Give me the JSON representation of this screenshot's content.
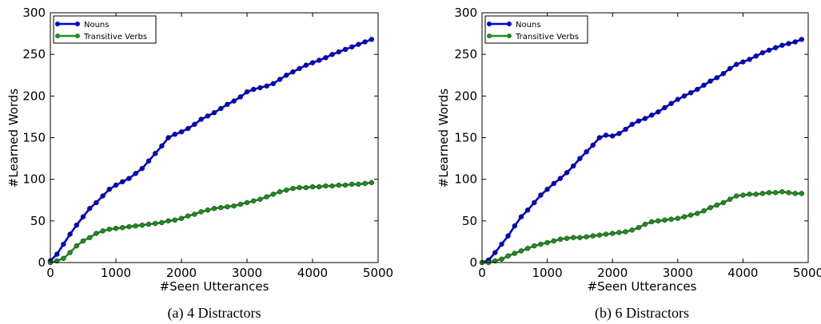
{
  "chart_data": [
    {
      "type": "line",
      "caption": "(a)  4 Distractors",
      "xlabel": "#Seen Utterances",
      "ylabel": "#Learned Words",
      "xlim": [
        0,
        5000
      ],
      "ylim": [
        0,
        300
      ],
      "xticks": [
        0,
        1000,
        2000,
        3000,
        4000,
        5000
      ],
      "yticks": [
        0,
        50,
        100,
        150,
        200,
        250,
        300
      ],
      "grid": false,
      "legend": "top-left",
      "series": [
        {
          "name": "Nouns",
          "color": "#0000cc",
          "x": [
            0,
            100,
            200,
            300,
            400,
            500,
            600,
            700,
            800,
            900,
            1000,
            1100,
            1200,
            1300,
            1400,
            1500,
            1600,
            1700,
            1800,
            1900,
            2000,
            2100,
            2200,
            2300,
            2400,
            2500,
            2600,
            2700,
            2800,
            2900,
            3000,
            3100,
            3200,
            3300,
            3400,
            3500,
            3600,
            3700,
            3800,
            3900,
            4000,
            4100,
            4200,
            4300,
            4400,
            4500,
            4600,
            4700,
            4800,
            4900
          ],
          "values": [
            2,
            10,
            22,
            34,
            45,
            55,
            65,
            72,
            80,
            88,
            93,
            97,
            101,
            107,
            113,
            122,
            131,
            140,
            150,
            154,
            157,
            161,
            166,
            172,
            176,
            180,
            185,
            190,
            194,
            199,
            205,
            208,
            210,
            212,
            215,
            220,
            225,
            229,
            233,
            237,
            240,
            243,
            246,
            250,
            253,
            256,
            259,
            262,
            265,
            268
          ]
        },
        {
          "name": "Transitive Verbs",
          "color": "#228b22",
          "x": [
            0,
            100,
            200,
            300,
            400,
            500,
            600,
            700,
            800,
            900,
            1000,
            1100,
            1200,
            1300,
            1400,
            1500,
            1600,
            1700,
            1800,
            1900,
            2000,
            2100,
            2200,
            2300,
            2400,
            2500,
            2600,
            2700,
            2800,
            2900,
            3000,
            3100,
            3200,
            3300,
            3400,
            3500,
            3600,
            3700,
            3800,
            3900,
            4000,
            4100,
            4200,
            4300,
            4400,
            4500,
            4600,
            4700,
            4800,
            4900
          ],
          "values": [
            0,
            2,
            5,
            12,
            20,
            26,
            30,
            35,
            38,
            40,
            41,
            42,
            43,
            44,
            45,
            46,
            47,
            48,
            50,
            51,
            53,
            56,
            58,
            61,
            63,
            65,
            66,
            67,
            68,
            70,
            72,
            74,
            76,
            79,
            82,
            85,
            87,
            89,
            90,
            90,
            91,
            91,
            92,
            92,
            93,
            93,
            94,
            94,
            95,
            96
          ]
        }
      ]
    },
    {
      "type": "line",
      "caption": "(b)  6 Distractors",
      "xlabel": "#Seen Utterances",
      "ylabel": "#Learned Words",
      "xlim": [
        0,
        5000
      ],
      "ylim": [
        0,
        300
      ],
      "xticks": [
        0,
        1000,
        2000,
        3000,
        4000,
        5000
      ],
      "yticks": [
        0,
        50,
        100,
        150,
        200,
        250,
        300
      ],
      "grid": false,
      "legend": "top-left",
      "series": [
        {
          "name": "Nouns",
          "color": "#0000cc",
          "x": [
            0,
            100,
            200,
            300,
            400,
            500,
            600,
            700,
            800,
            900,
            1000,
            1100,
            1200,
            1300,
            1400,
            1500,
            1600,
            1700,
            1800,
            1900,
            2000,
            2100,
            2200,
            2300,
            2400,
            2500,
            2600,
            2700,
            2800,
            2900,
            3000,
            3100,
            3200,
            3300,
            3400,
            3500,
            3600,
            3700,
            3800,
            3900,
            4000,
            4100,
            4200,
            4300,
            4400,
            4500,
            4600,
            4700,
            4800,
            4900
          ],
          "values": [
            0,
            3,
            12,
            22,
            32,
            44,
            55,
            63,
            72,
            81,
            88,
            95,
            101,
            108,
            116,
            125,
            133,
            141,
            150,
            153,
            152,
            155,
            160,
            166,
            170,
            173,
            177,
            181,
            186,
            191,
            196,
            200,
            204,
            208,
            213,
            218,
            222,
            227,
            233,
            238,
            241,
            244,
            248,
            252,
            255,
            258,
            261,
            263,
            265,
            268
          ]
        },
        {
          "name": "Transitive Verbs",
          "color": "#228b22",
          "x": [
            0,
            100,
            200,
            300,
            400,
            500,
            600,
            700,
            800,
            900,
            1000,
            1100,
            1200,
            1300,
            1400,
            1500,
            1600,
            1700,
            1800,
            1900,
            2000,
            2100,
            2200,
            2300,
            2400,
            2500,
            2600,
            2700,
            2800,
            2900,
            3000,
            3100,
            3200,
            3300,
            3400,
            3500,
            3600,
            3700,
            3800,
            3900,
            4000,
            4100,
            4200,
            4300,
            4400,
            4500,
            4600,
            4700,
            4800,
            4900
          ],
          "values": [
            0,
            0,
            2,
            4,
            8,
            11,
            14,
            17,
            20,
            22,
            24,
            26,
            28,
            29,
            30,
            30,
            31,
            32,
            33,
            34,
            35,
            36,
            37,
            39,
            42,
            46,
            49,
            50,
            51,
            52,
            53,
            55,
            57,
            59,
            62,
            66,
            69,
            72,
            76,
            80,
            81,
            82,
            82,
            83,
            84,
            84,
            85,
            84,
            83,
            83
          ]
        }
      ]
    }
  ]
}
